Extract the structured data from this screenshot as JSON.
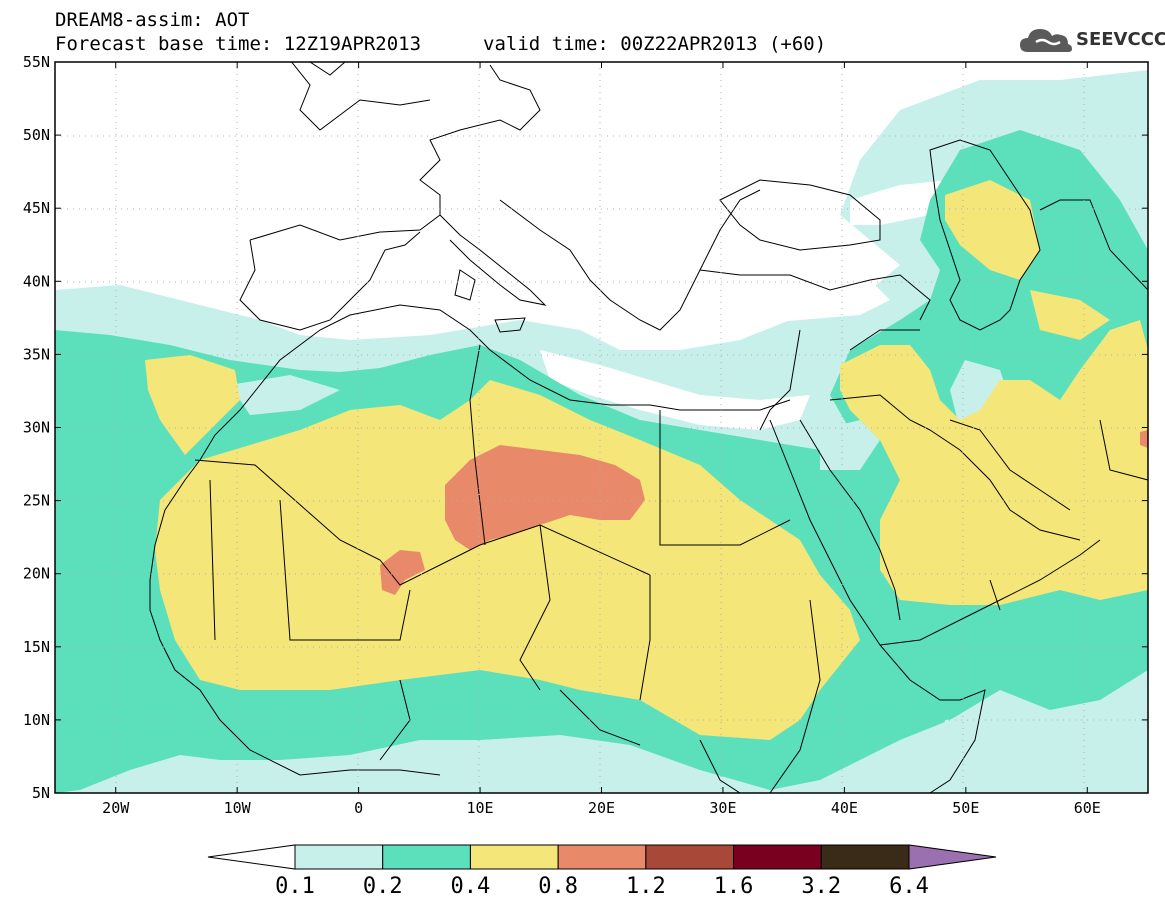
{
  "header": {
    "line1": "DREAM8-assim: AOT",
    "line2": "Forecast base time: 12Z19APR2013",
    "valid": "valid time: 00Z22APR2013 (+60)"
  },
  "logo": {
    "text": "SEEVCCC",
    "icon": "cloud-icon"
  },
  "map": {
    "lon_range": [
      -25,
      65
    ],
    "lat_range": [
      5,
      55
    ],
    "lat_ticks": [
      "5N",
      "10N",
      "15N",
      "20N",
      "25N",
      "30N",
      "35N",
      "40N",
      "45N",
      "50N",
      "55N"
    ],
    "lon_ticks": [
      "20W",
      "10W",
      "0",
      "10E",
      "20E",
      "30E",
      "40E",
      "50E",
      "60E"
    ],
    "grid": "dotted",
    "colors": {
      "c01": "#c8f0ea",
      "c02": "#5ce0bc",
      "c04": "#f5e67a",
      "c08": "#e8896a",
      "land_line": "#000000"
    }
  },
  "colorbar": {
    "levels": [
      "0.1",
      "0.2",
      "0.4",
      "0.8",
      "1.2",
      "1.6",
      "3.2",
      "6.4"
    ],
    "colors": [
      "#ffffff",
      "#c8f0ea",
      "#5ce0bc",
      "#f5e67a",
      "#e8896a",
      "#a84838",
      "#7a0020",
      "#3a2a18",
      "#9a70b0"
    ]
  }
}
